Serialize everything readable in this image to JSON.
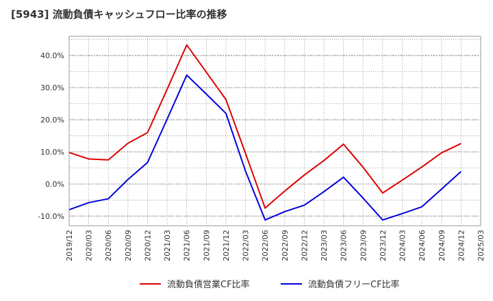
{
  "chart_data": {
    "type": "line",
    "title": "[5943]  流動負債キャッシュフロー比率の推移",
    "x": [
      "2019/12",
      "2020/03",
      "2020/06",
      "2020/09",
      "2020/12",
      "2021/03",
      "2021/06",
      "2021/09",
      "2021/12",
      "2022/03",
      "2022/06",
      "2022/09",
      "2022/12",
      "2023/03",
      "2023/06",
      "2023/09",
      "2023/12",
      "2024/03",
      "2024/06",
      "2024/09",
      "2024/12",
      "2025/03"
    ],
    "y_ticks": [
      "-10.0%",
      "0.0%",
      "10.0%",
      "20.0%",
      "30.0%",
      "40.0%"
    ],
    "ylim": [
      -13,
      46
    ],
    "grid": true,
    "legend_position": "bottom",
    "series": [
      {
        "name": "流動負債営業CF比率",
        "color": "#dd0000",
        "values": [
          9.8,
          7.8,
          7.5,
          12.7,
          16.0,
          29.5,
          43.3,
          34.8,
          26.3,
          9.5,
          -7.5,
          -2.2,
          2.8,
          7.3,
          12.4,
          5.2,
          -2.8,
          1.2,
          5.3,
          9.7,
          12.6,
          null
        ]
      },
      {
        "name": "流動負債フリーCF比率",
        "color": "#0000dd",
        "values": [
          -8.0,
          -5.8,
          -4.6,
          1.4,
          6.7,
          20.2,
          33.9,
          28.0,
          22.0,
          4.0,
          -11.2,
          -8.6,
          -6.6,
          -2.4,
          2.1,
          -4.4,
          -11.2,
          -9.2,
          -7.1,
          -1.6,
          3.9,
          null
        ]
      }
    ]
  }
}
